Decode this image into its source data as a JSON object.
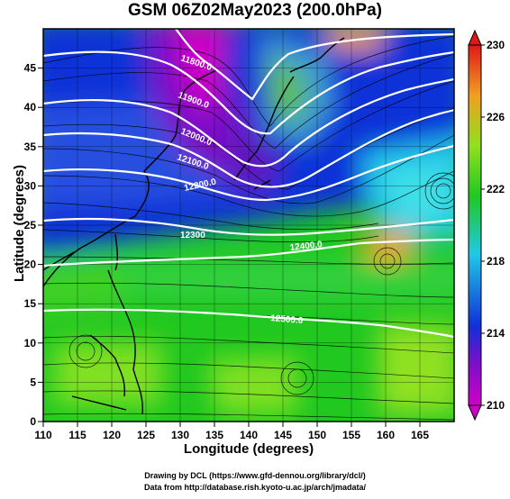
{
  "title": "GSM 06Z02May2023 (200.0hPa)",
  "xaxis": {
    "label": "Longitude (degrees)",
    "range": [
      110,
      170
    ],
    "ticks": [
      "110",
      "115",
      "120",
      "125",
      "130",
      "135",
      "140",
      "145",
      "150",
      "155",
      "160",
      "165"
    ]
  },
  "yaxis": {
    "label": "Latitude  (degrees)",
    "range": [
      0,
      50
    ],
    "ticks": [
      "0",
      "5",
      "10",
      "15",
      "20",
      "25",
      "30",
      "35",
      "40",
      "45"
    ]
  },
  "colorbar": {
    "range": [
      210,
      230
    ],
    "labels": [
      "210",
      "214",
      "218",
      "222",
      "226",
      "230"
    ]
  },
  "contours": [
    {
      "label": "11800.0"
    },
    {
      "label": "11900.0"
    },
    {
      "label": "12000.0"
    },
    {
      "label": "12100.0"
    },
    {
      "label": "12200.0"
    },
    {
      "label": "12300"
    },
    {
      "label": "12400.0"
    },
    {
      "label": "12500.0"
    }
  ],
  "colors": {
    "magenta": "#d000c8",
    "purple": "#7a10c8",
    "blue": "#1030d8",
    "cyan": "#20c8e8",
    "green": "#20c820",
    "lime": "#90e020",
    "orange": "#f0a020"
  },
  "credits": {
    "line1": "Drawing by DCL (https://www.gfd-dennou.org/library/dcl/)",
    "line2": "Data from http://database.rish.kyoto-u.ac.jp/arch/jmadata/"
  }
}
